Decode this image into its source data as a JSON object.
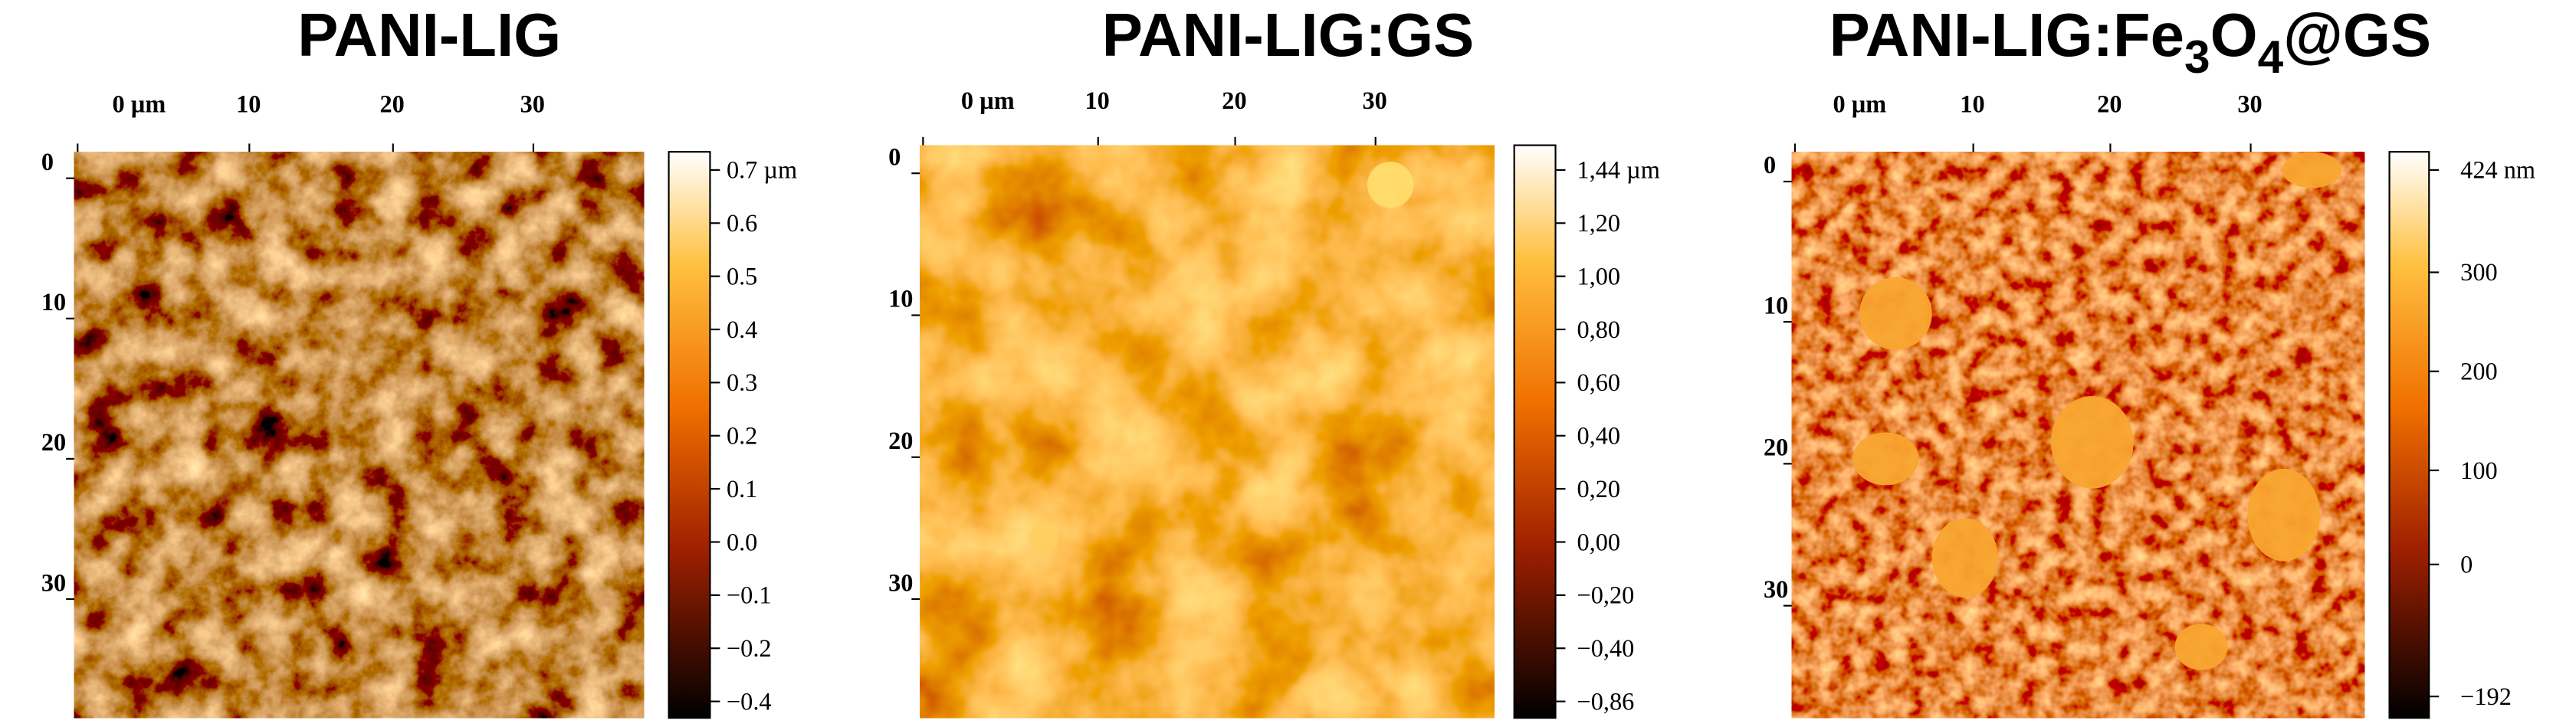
{
  "panels": [
    {
      "title": [
        {
          "text": "PANI-LIG",
          "sub": false
        }
      ],
      "x_ticks": [
        "0 µm",
        "10",
        "20",
        "30"
      ],
      "y_ticks": [
        "0",
        "10",
        "20",
        "30"
      ],
      "colorbar_labels": [
        "0.7 µm",
        "0.6",
        "0.5",
        "0.4",
        "0.3",
        "0.2",
        "0.1",
        "0.0",
        "−0.1",
        "−0.2",
        "−0.4"
      ]
    },
    {
      "title": [
        {
          "text": "PANI-LIG:GS",
          "sub": false
        }
      ],
      "x_ticks": [
        "0 µm",
        "10",
        "20",
        "30"
      ],
      "y_ticks": [
        "0",
        "10",
        "20",
        "30"
      ],
      "colorbar_labels": [
        "1,44 µm",
        "1,20",
        "1,00",
        "0,80",
        "0,60",
        "0,40",
        "0,20",
        "0,00",
        "−0,20",
        "−0,40",
        "−0,86"
      ]
    },
    {
      "title": [
        {
          "text": "PANI-LIG:Fe",
          "sub": false
        },
        {
          "text": "3",
          "sub": true
        },
        {
          "text": "O",
          "sub": false
        },
        {
          "text": "4",
          "sub": true
        },
        {
          "text": "@GS",
          "sub": false
        }
      ],
      "x_ticks": [
        "0 µm",
        "10",
        "20",
        "30"
      ],
      "y_ticks": [
        "0",
        "10",
        "20",
        "30"
      ],
      "colorbar_labels": [
        "424 nm",
        "300",
        "200",
        "100",
        "0",
        "−192"
      ]
    }
  ]
}
